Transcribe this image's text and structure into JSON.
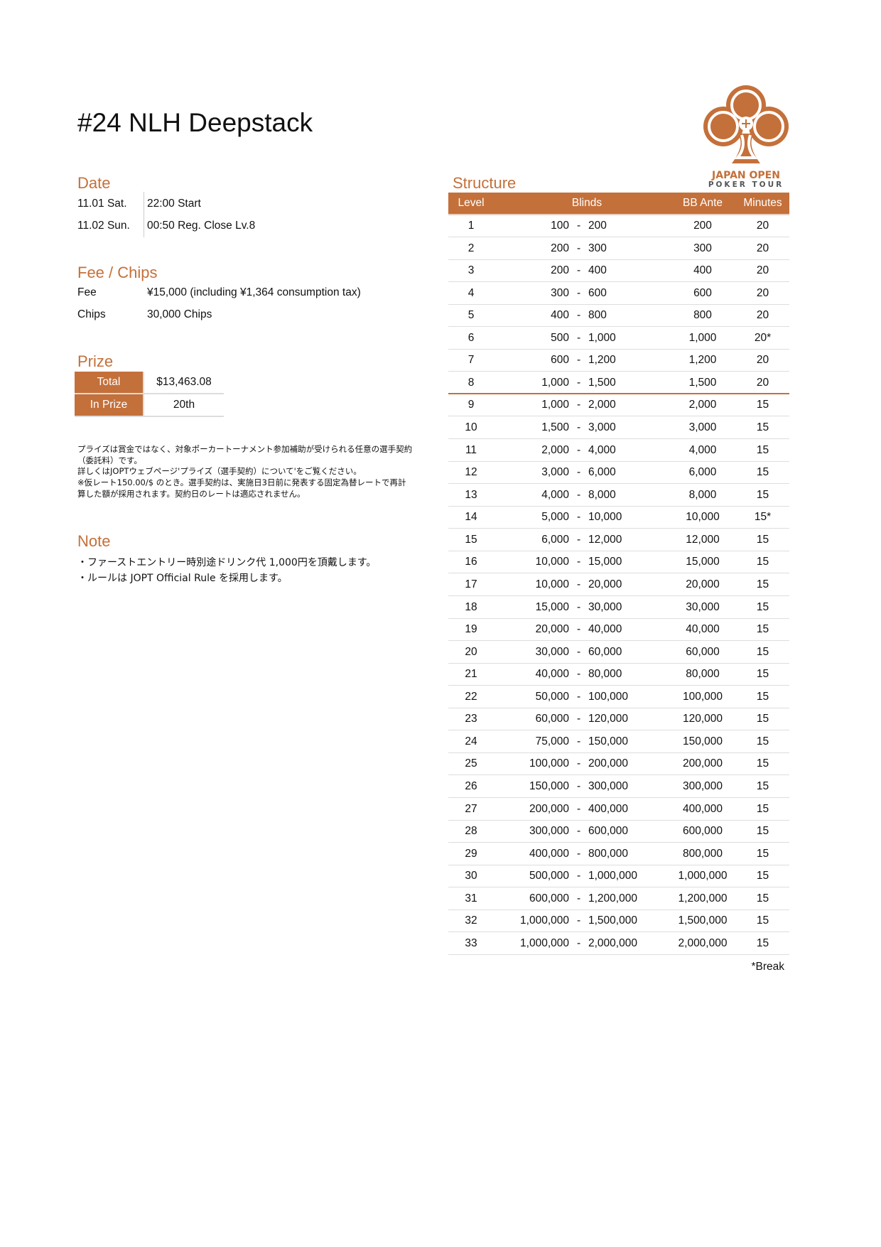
{
  "title": "#24 NLH Deepstack",
  "brand": {
    "name_line1": "JAPAN OPEN",
    "name_line2": "POKER TOUR",
    "color": "#C4703A"
  },
  "date": {
    "heading": "Date",
    "rows": [
      {
        "day": "11.01 Sat.",
        "info": "22:00 Start"
      },
      {
        "day": "11.02 Sun.",
        "info": "00:50 Reg. Close Lv.8"
      }
    ]
  },
  "fee": {
    "heading": "Fee / Chips",
    "fee_label": "Fee",
    "fee_value": "¥15,000 (including ¥1,364 consumption tax)",
    "chips_label": "Chips",
    "chips_value": "30,000 Chips"
  },
  "prize": {
    "heading": "Prize",
    "total_label": "Total",
    "total_value": "$13,463.08",
    "inprize_label": "In Prize",
    "inprize_value": "20th",
    "disclaimer": [
      "プライズは賞金ではなく、対象ポーカートーナメント参加補助が受けられる任意の選手契約",
      "（委託料）です。",
      "詳しくはJOPTウェブページ'プライズ（選手契約）について'をご覧ください。",
      "※仮レート150.00/$ のとき。選手契約は、実施日3日前に発表する固定為替レートで再計",
      "算した額が採用されます。契約日のレートは適応されません。"
    ]
  },
  "note": {
    "heading": "Note",
    "lines": [
      "・ファーストエントリー時別途ドリンク代 1,000円を頂戴します。",
      "・ルールは JOPT Official Rule を採用します。"
    ]
  },
  "structure": {
    "heading": "Structure",
    "columns": [
      "Level",
      "Blinds",
      "BB Ante",
      "Minutes"
    ],
    "rows": [
      [
        "1",
        "100",
        "200",
        "200",
        "20"
      ],
      [
        "2",
        "200",
        "300",
        "300",
        "20"
      ],
      [
        "3",
        "200",
        "400",
        "400",
        "20"
      ],
      [
        "4",
        "300",
        "600",
        "600",
        "20"
      ],
      [
        "5",
        "400",
        "800",
        "800",
        "20"
      ],
      [
        "6",
        "500",
        "1,000",
        "1,000",
        "20*"
      ],
      [
        "7",
        "600",
        "1,200",
        "1,200",
        "20"
      ],
      [
        "8",
        "1,000",
        "1,500",
        "1,500",
        "20"
      ],
      [
        "9",
        "1,000",
        "2,000",
        "2,000",
        "15"
      ],
      [
        "10",
        "1,500",
        "3,000",
        "3,000",
        "15"
      ],
      [
        "11",
        "2,000",
        "4,000",
        "4,000",
        "15"
      ],
      [
        "12",
        "3,000",
        "6,000",
        "6,000",
        "15"
      ],
      [
        "13",
        "4,000",
        "8,000",
        "8,000",
        "15"
      ],
      [
        "14",
        "5,000",
        "10,000",
        "10,000",
        "15*"
      ],
      [
        "15",
        "6,000",
        "12,000",
        "12,000",
        "15"
      ],
      [
        "16",
        "10,000",
        "15,000",
        "15,000",
        "15"
      ],
      [
        "17",
        "10,000",
        "20,000",
        "20,000",
        "15"
      ],
      [
        "18",
        "15,000",
        "30,000",
        "30,000",
        "15"
      ],
      [
        "19",
        "20,000",
        "40,000",
        "40,000",
        "15"
      ],
      [
        "20",
        "30,000",
        "60,000",
        "60,000",
        "15"
      ],
      [
        "21",
        "40,000",
        "80,000",
        "80,000",
        "15"
      ],
      [
        "22",
        "50,000",
        "100,000",
        "100,000",
        "15"
      ],
      [
        "23",
        "60,000",
        "120,000",
        "120,000",
        "15"
      ],
      [
        "24",
        "75,000",
        "150,000",
        "150,000",
        "15"
      ],
      [
        "25",
        "100,000",
        "200,000",
        "200,000",
        "15"
      ],
      [
        "26",
        "150,000",
        "300,000",
        "300,000",
        "15"
      ],
      [
        "27",
        "200,000",
        "400,000",
        "400,000",
        "15"
      ],
      [
        "28",
        "300,000",
        "600,000",
        "600,000",
        "15"
      ],
      [
        "29",
        "400,000",
        "800,000",
        "800,000",
        "15"
      ],
      [
        "30",
        "500,000",
        "1,000,000",
        "1,000,000",
        "15"
      ],
      [
        "31",
        "600,000",
        "1,200,000",
        "1,200,000",
        "15"
      ],
      [
        "32",
        "1,000,000",
        "1,500,000",
        "1,500,000",
        "15"
      ],
      [
        "33",
        "1,000,000",
        "2,000,000",
        "2,000,000",
        "15"
      ]
    ],
    "separator": "-",
    "footnote": "*Break"
  }
}
